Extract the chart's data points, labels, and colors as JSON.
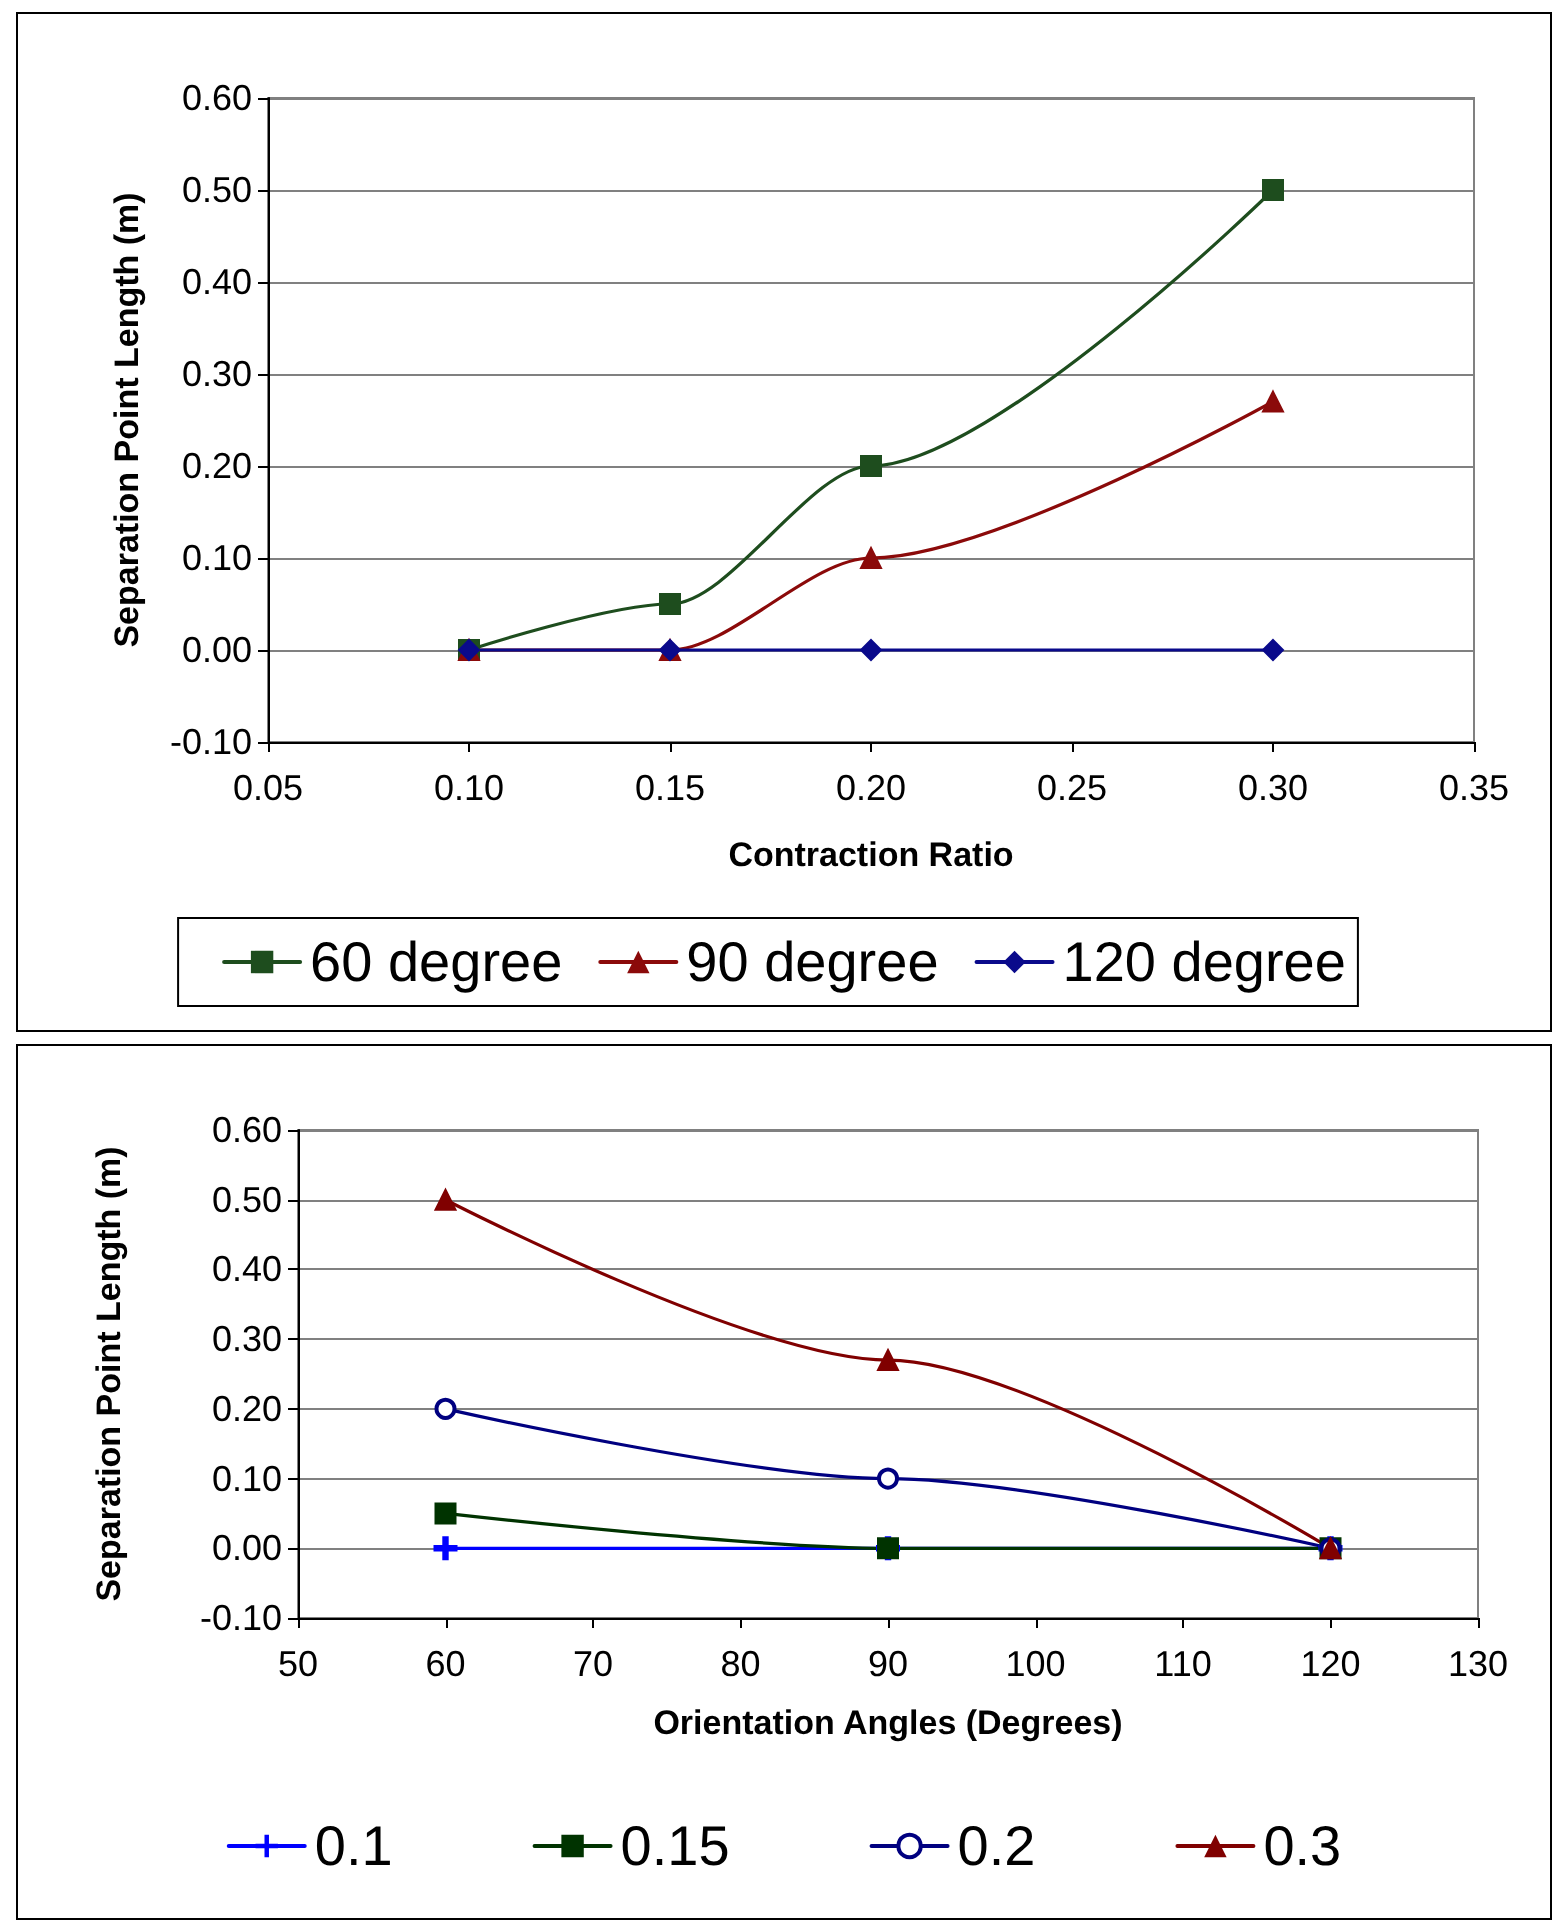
{
  "chart_data": [
    {
      "type": "line",
      "xlabel": "Contraction Ratio",
      "ylabel": "Separation Point Length (m)",
      "x": [
        0.1,
        0.15,
        0.2,
        0.3
      ],
      "series": [
        {
          "name": "60 degree",
          "color": "#1e4d1e",
          "marker": "square",
          "values": [
            0,
            0.05,
            0.2,
            0.5
          ]
        },
        {
          "name": "90 degree",
          "color": "#8b0a0a",
          "marker": "triangle",
          "values": [
            0,
            0,
            0.1,
            0.27
          ]
        },
        {
          "name": "120 degree",
          "color": "#0a0a8b",
          "marker": "diamond",
          "values": [
            0,
            0,
            0,
            0
          ]
        }
      ],
      "xlim": [
        0.05,
        0.35
      ],
      "xticks": [
        {
          "value": 0.05,
          "label": "0.05"
        },
        {
          "value": 0.1,
          "label": "0.10"
        },
        {
          "value": 0.15,
          "label": "0.15"
        },
        {
          "value": 0.2,
          "label": "0.20"
        },
        {
          "value": 0.25,
          "label": "0.25"
        },
        {
          "value": 0.3,
          "label": "0.30"
        },
        {
          "value": 0.35,
          "label": "0.35"
        }
      ],
      "ylim": [
        -0.1,
        0.6
      ],
      "yticks": [
        {
          "value": -0.1,
          "label": "-0.10"
        },
        {
          "value": 0,
          "label": "0.00"
        },
        {
          "value": 0.1,
          "label": "0.10"
        },
        {
          "value": 0.2,
          "label": "0.20"
        },
        {
          "value": 0.3,
          "label": "0.30"
        },
        {
          "value": 0.4,
          "label": "0.40"
        },
        {
          "value": 0.5,
          "label": "0.50"
        },
        {
          "value": 0.6,
          "label": "0.60"
        }
      ],
      "grid": "y",
      "legend": "bottom",
      "line_style": "solid"
    },
    {
      "type": "line",
      "xlabel": "Orientation Angles (Degrees)",
      "ylabel": "Separation Point Length (m)",
      "x": [
        60,
        90,
        120
      ],
      "series": [
        {
          "name": "0.1",
          "color": "#0000ff",
          "marker": "cross",
          "values": [
            0,
            0,
            0
          ]
        },
        {
          "name": "0.15",
          "color": "#003300",
          "marker": "square",
          "values": [
            0.05,
            0,
            0
          ]
        },
        {
          "name": "0.2",
          "color": "#000080",
          "marker": "circle",
          "values": [
            0.2,
            0.1,
            0
          ]
        },
        {
          "name": "0.3",
          "color": "#800000",
          "marker": "triangle",
          "values": [
            0.5,
            0.27,
            0
          ]
        }
      ],
      "xlim": [
        50,
        130
      ],
      "xticks": [
        50,
        60,
        70,
        80,
        90,
        100,
        110,
        120,
        130
      ],
      "ylim": [
        -0.1,
        0.6
      ],
      "yticks": [
        {
          "value": -0.1,
          "label": "-0.10"
        },
        {
          "value": 0,
          "label": "0.00"
        },
        {
          "value": 0.1,
          "label": "0.10"
        },
        {
          "value": 0.2,
          "label": "0.20"
        },
        {
          "value": 0.3,
          "label": "0.30"
        },
        {
          "value": 0.4,
          "label": "0.40"
        },
        {
          "value": 0.5,
          "label": "0.50"
        },
        {
          "value": 0.6,
          "label": "0.60"
        }
      ],
      "grid": "y",
      "legend": "bottom",
      "line_style": "solid"
    }
  ]
}
